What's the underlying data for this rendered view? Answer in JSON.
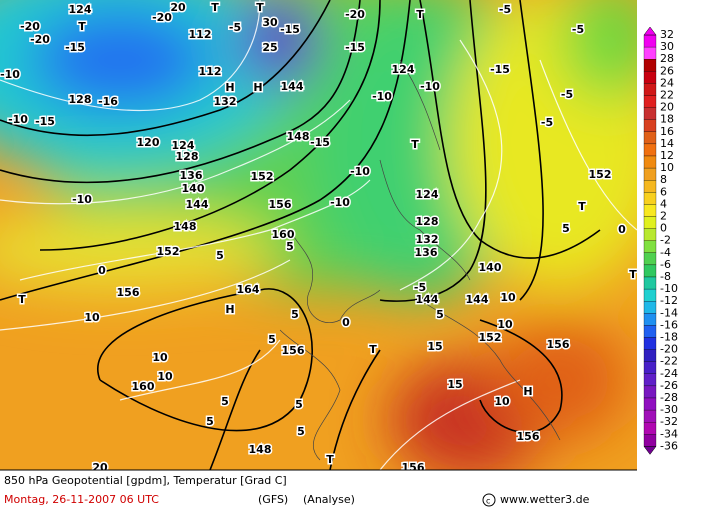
{
  "map": {
    "footer": {
      "line1": "850 hPa Geopotential [gpdm], Temperatur [Grad C]",
      "date": "Montag, 26-11-2007  06 UTC",
      "model": "(GFS)",
      "analysis": "(Analyse)",
      "credit": "www.wetter3.de"
    },
    "colorbar": {
      "values": [
        32,
        30,
        28,
        26,
        24,
        22,
        20,
        18,
        16,
        14,
        12,
        10,
        8,
        6,
        4,
        2,
        0,
        -2,
        -4,
        -6,
        -8,
        -10,
        -12,
        -14,
        -16,
        -18,
        -20,
        -22,
        -24,
        -26,
        -28,
        -30,
        -32,
        -34,
        -36
      ],
      "colors": [
        "#f000f0",
        "#ff40ff",
        "#b00000",
        "#c80010",
        "#d01818",
        "#e02020",
        "#c83030",
        "#d84020",
        "#e06018",
        "#f07010",
        "#f08a10",
        "#f0a020",
        "#f5b820",
        "#f8d020",
        "#f8e820",
        "#e0f020",
        "#b8e830",
        "#80e040",
        "#50d050",
        "#30c860",
        "#20c8a0",
        "#20d0d0",
        "#20b8e8",
        "#2090f0",
        "#2060f0",
        "#2030e0",
        "#3020c0",
        "#4820c8",
        "#6020c8",
        "#7818c0",
        "#9010c0",
        "#a010b8",
        "#b008b0",
        "#9000a0",
        "#700090"
      ]
    },
    "labels": [
      "-20",
      "124",
      "T",
      "-20",
      "20",
      "T",
      "30",
      "-20",
      "T",
      "-5",
      "-20",
      "-15",
      "112",
      "-15",
      "25",
      "-15",
      "-5",
      "-5",
      "T",
      "112",
      "H",
      "144",
      "124",
      "-10",
      "-15",
      "128",
      "-16",
      "132",
      "H",
      "-10",
      "-10",
      "-5",
      "-10",
      "-15",
      "148",
      "-15",
      "T",
      "120",
      "124",
      "128",
      "-5",
      "136",
      "140",
      "-10",
      "152",
      "124",
      "152",
      "-10",
      "144",
      "156",
      "-10",
      "128",
      "T",
      "148",
      "160",
      "132",
      "5",
      "0",
      "152",
      "5",
      "136",
      "5",
      "T",
      "0",
      "140",
      "-5",
      "156",
      "164",
      "144",
      "144",
      "10",
      "5",
      "H",
      "10",
      "5",
      "0",
      "5",
      "T",
      "152",
      "10",
      "156",
      "10",
      "156",
      "10",
      "15",
      "15",
      "H",
      "160",
      "5",
      "5",
      "5",
      "5",
      "156",
      "148",
      "T",
      "20",
      "156",
      "10",
      "T"
    ]
  }
}
